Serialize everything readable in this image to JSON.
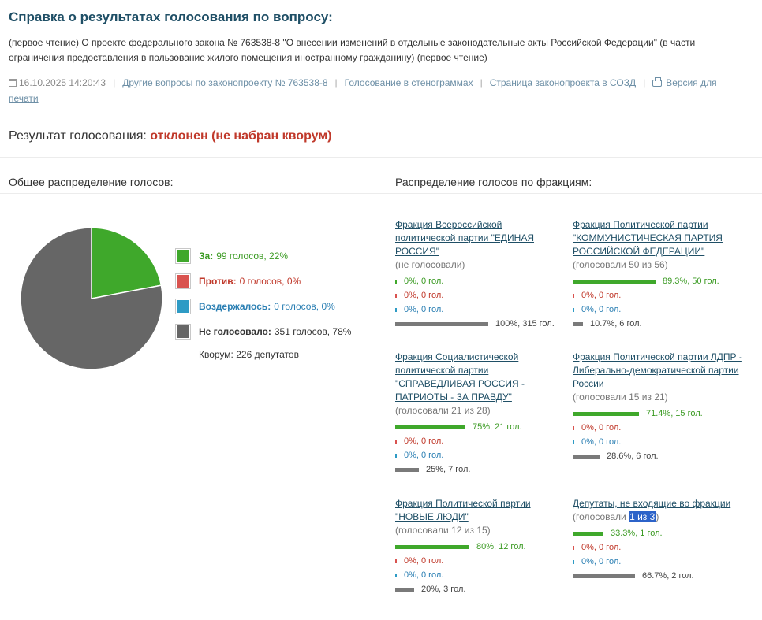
{
  "header": {
    "title": "Справка о результатах голосования по вопросу:",
    "subtitle": "(первое чтение) О проекте федерального закона № 763538-8 \"О внесении изменений в отдельные законодательные акты Российской Федерации\" (в части ограничения предоставления в пользование жилого помещения иностранному гражданину) (первое чтение)"
  },
  "meta": {
    "datetime": "16.10.2025 14:20:43",
    "links": [
      "Другие вопросы по законопроекту № 763538-8",
      "Голосование в стенограммах",
      "Страница законопроекта в СОЗД",
      "Версия для печати"
    ]
  },
  "result": {
    "label": "Результат голосования: ",
    "status": "отклонен (не набран кворум)"
  },
  "overall": {
    "heading": "Общее распределение голосов:",
    "legend": [
      {
        "label": "За:",
        "value": "99 голосов, 22%",
        "count": 99,
        "color": "#3fa82b",
        "text_color": "#3a9a22"
      },
      {
        "label": "Против:",
        "value": "0 голосов, 0%",
        "count": 0,
        "color": "#d9534f",
        "text_color": "#c0392b"
      },
      {
        "label": "Воздержалось:",
        "value": "0 голосов, 0%",
        "count": 0,
        "color": "#2e9bc5",
        "text_color": "#2b7fb3"
      },
      {
        "label": "Не голосовало:",
        "value": "351 голосов, 78%",
        "count": 351,
        "color": "#666666",
        "text_color": "#333333"
      }
    ],
    "quorum": "Кворум: 226 депутатов"
  },
  "factions_heading": "Распределение голосов по фракциям:",
  "factions": [
    {
      "name": "Фракция Всероссийской политической партии \"ЕДИНАЯ РОССИЯ\"",
      "voted": "(не голосовали)",
      "za": {
        "text": "0%, 0 гол.",
        "pct": 0
      },
      "pr": {
        "text": "0%, 0 гол.",
        "pct": 0
      },
      "vz": {
        "text": "0%, 0 гол.",
        "pct": 0
      },
      "ng": {
        "text": "100%, 315 гол.",
        "pct": 100
      }
    },
    {
      "name": "Фракция Политической партии \"КОММУНИСТИЧЕСКАЯ ПАРТИЯ РОССИЙСКОЙ ФЕДЕРАЦИИ\"",
      "voted": "(голосовали 50 из 56)",
      "za": {
        "text": "89.3%, 50 гол.",
        "pct": 89.3
      },
      "pr": {
        "text": "0%, 0 гол.",
        "pct": 0
      },
      "vz": {
        "text": "0%, 0 гол.",
        "pct": 0
      },
      "ng": {
        "text": "10.7%, 6 гол.",
        "pct": 10.7
      }
    },
    {
      "name": "Фракция Социалистической политической партии \"СПРАВЕДЛИВАЯ РОССИЯ - ПАТРИОТЫ - ЗА ПРАВДУ\"",
      "voted": "(голосовали 21 из 28)",
      "za": {
        "text": "75%, 21 гол.",
        "pct": 75
      },
      "pr": {
        "text": "0%, 0 гол.",
        "pct": 0
      },
      "vz": {
        "text": "0%, 0 гол.",
        "pct": 0
      },
      "ng": {
        "text": "25%, 7 гол.",
        "pct": 25
      }
    },
    {
      "name": "Фракция Политической партии ЛДПР - Либерально-демократической партии России",
      "voted": "(голосовали 15 из 21)",
      "za": {
        "text": "71.4%, 15 гол.",
        "pct": 71.4
      },
      "pr": {
        "text": "0%, 0 гол.",
        "pct": 0
      },
      "vz": {
        "text": "0%, 0 гол.",
        "pct": 0
      },
      "ng": {
        "text": "28.6%, 6 гол.",
        "pct": 28.6
      }
    },
    {
      "name": "Фракция Политической партии \"НОВЫЕ ЛЮДИ\"",
      "voted": "(голосовали 12 из 15)",
      "za": {
        "text": "80%, 12 гол.",
        "pct": 80
      },
      "pr": {
        "text": "0%, 0 гол.",
        "pct": 0
      },
      "vz": {
        "text": "0%, 0 гол.",
        "pct": 0
      },
      "ng": {
        "text": "20%, 3 гол.",
        "pct": 20
      }
    },
    {
      "name": "Депутаты, не входящие во фракции",
      "voted_prefix": "(голосовали ",
      "voted_highlight": "1 из 3",
      "voted_suffix": ")",
      "za": {
        "text": "33.3%, 1 гол.",
        "pct": 33.3
      },
      "pr": {
        "text": "0%, 0 гол.",
        "pct": 0
      },
      "vz": {
        "text": "0%, 0 гол.",
        "pct": 0
      },
      "ng": {
        "text": "66.7%, 2 гол.",
        "pct": 66.7
      }
    }
  ]
}
